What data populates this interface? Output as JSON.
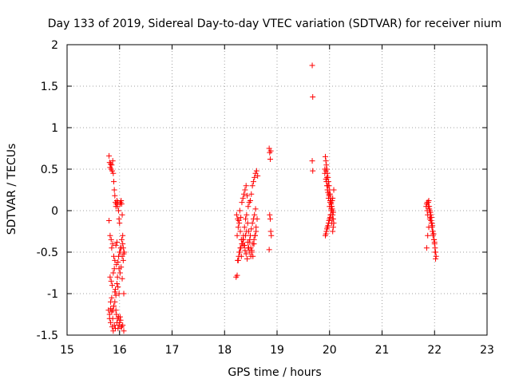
{
  "chart_data": {
    "type": "scatter",
    "title": "Day 133 of 2019, Sidereal Day-to-day VTEC variation (SDTVAR) for receiver nium",
    "xlabel": "GPS time / hours",
    "ylabel": "SDTVAR / TECUs",
    "xlim": [
      15,
      23
    ],
    "ylim": [
      -1.5,
      2
    ],
    "xticks": [
      "15",
      "16",
      "17",
      "18",
      "19",
      "20",
      "21",
      "22",
      "23"
    ],
    "yticks": [
      "-1.5",
      "-1",
      "-0.5",
      "0",
      "0.5",
      "1",
      "1.5",
      "2"
    ],
    "grid": true,
    "marker": "+",
    "colors": {
      "series": "#ff0000",
      "grid": "#a0a0a0",
      "axis": "#000000"
    },
    "series": [
      {
        "name": "receiver nium",
        "x": [
          15.8,
          15.81,
          15.82,
          15.83,
          15.84,
          15.85,
          15.86,
          15.87,
          15.88,
          15.89,
          15.9,
          15.91,
          15.92,
          15.93,
          15.94,
          15.95,
          15.96,
          15.97,
          15.98,
          15.99,
          16.0,
          16.01,
          16.02,
          16.03,
          16.04,
          16.05,
          16.06,
          16.07,
          16.08,
          16.09,
          15.8,
          15.82,
          15.84,
          15.85,
          15.87,
          15.89,
          15.91,
          15.93,
          15.95,
          15.97,
          15.99,
          16.01,
          16.03,
          16.05,
          16.07,
          15.82,
          15.84,
          15.86,
          15.88,
          15.9,
          15.92,
          15.94,
          15.96,
          15.98,
          16.0,
          16.02,
          16.04,
          16.06,
          16.08,
          15.83,
          15.85,
          15.87,
          15.89,
          15.91,
          15.93,
          15.95,
          15.97,
          15.99,
          16.01,
          16.03,
          16.05,
          15.81,
          15.83,
          15.86,
          15.88,
          15.9,
          15.92,
          15.94,
          15.96,
          15.98,
          16.0,
          16.02,
          16.04,
          16.06,
          16.08,
          15.79,
          15.81,
          15.83,
          15.85,
          15.87,
          15.89,
          15.91,
          15.93,
          15.95,
          15.97,
          15.99,
          16.01,
          16.03,
          18.23,
          18.25,
          18.27,
          18.29,
          18.31,
          18.33,
          18.35,
          18.37,
          18.39,
          18.41,
          18.43,
          18.45,
          18.47,
          18.49,
          18.51,
          18.53,
          18.55,
          18.57,
          18.59,
          18.61,
          18.63,
          18.22,
          18.24,
          18.26,
          18.28,
          18.3,
          18.32,
          18.34,
          18.36,
          18.38,
          18.4,
          18.42,
          18.44,
          18.46,
          18.48,
          18.5,
          18.52,
          18.54,
          18.56,
          18.58,
          18.6,
          18.24,
          18.26,
          18.28,
          18.3,
          18.32,
          18.34,
          18.36,
          18.38,
          18.4,
          18.42,
          18.44,
          18.46,
          18.48,
          18.5,
          18.52,
          18.54,
          18.56,
          18.58,
          18.6,
          18.62,
          18.25,
          18.27,
          18.29,
          18.31,
          18.33,
          18.35,
          18.37,
          18.39,
          18.41,
          18.43,
          18.45,
          18.47,
          18.49,
          18.51,
          18.53,
          18.55,
          18.57,
          18.59,
          18.85,
          18.86,
          18.87,
          18.88,
          18.86,
          18.87,
          18.88,
          18.89,
          18.85,
          19.67,
          19.68,
          19.67,
          19.68,
          19.92,
          19.93,
          19.94,
          19.95,
          19.96,
          19.97,
          19.98,
          19.99,
          20.0,
          20.01,
          20.02,
          20.03,
          20.04,
          20.05,
          20.06,
          20.07,
          20.08,
          19.91,
          19.93,
          19.95,
          19.97,
          19.99,
          20.01,
          20.03,
          20.05,
          20.07,
          19.94,
          19.96,
          19.98,
          20.0,
          20.02,
          20.04,
          20.06,
          19.92,
          19.94,
          19.96,
          19.98,
          20.0,
          20.02,
          20.04,
          20.06,
          20.08,
          19.93,
          19.95,
          19.97,
          19.99,
          20.01,
          20.03,
          20.05,
          19.91,
          19.93,
          19.95,
          19.97,
          19.99,
          20.01,
          20.03,
          20.05,
          20.07,
          21.84,
          21.85,
          21.86,
          21.87,
          21.88,
          21.89,
          21.9,
          21.91,
          21.92,
          21.93,
          21.94,
          21.95,
          21.96,
          21.97,
          21.98,
          21.99,
          22.0,
          22.01,
          22.02,
          22.03,
          21.85,
          21.87,
          21.89,
          21.91,
          21.93,
          21.95,
          21.97,
          21.99,
          22.01,
          21.86,
          21.88,
          21.9,
          21.92,
          21.94,
          21.96,
          21.98,
          22.0,
          22.02
        ],
        "y": [
          0.66,
          0.58,
          0.52,
          0.56,
          0.5,
          0.55,
          0.48,
          0.6,
          0.45,
          0.35,
          0.25,
          0.18,
          0.1,
          0.05,
          0.08,
          0.12,
          0.05,
          0.1,
          0.0,
          -0.1,
          -0.15,
          0.08,
          0.1,
          0.12,
          0.08,
          -0.05,
          -0.3,
          -0.45,
          -0.52,
          -0.5,
          -0.12,
          -0.3,
          -0.35,
          -0.45,
          -0.4,
          -0.55,
          -0.6,
          -0.42,
          -0.38,
          -0.62,
          -0.7,
          -0.5,
          -0.45,
          -0.55,
          -0.6,
          -0.8,
          -0.85,
          -0.9,
          -0.75,
          -0.7,
          -0.95,
          -0.65,
          -0.8,
          -0.55,
          -0.5,
          -0.45,
          -0.35,
          -0.4,
          -1.0,
          -1.1,
          -1.05,
          -1.2,
          -1.15,
          -0.98,
          -1.02,
          -0.88,
          -0.92,
          -1.0,
          -0.75,
          -0.68,
          -0.82,
          -1.3,
          -1.35,
          -1.4,
          -1.45,
          -1.38,
          -1.42,
          -1.25,
          -1.3,
          -1.28,
          -1.35,
          -1.32,
          -1.4,
          -1.38,
          -1.45,
          -1.2,
          -1.25,
          -1.18,
          -1.22,
          -1.3,
          -1.15,
          -1.1,
          -1.2,
          -1.35,
          -1.42,
          -1.38,
          -1.28,
          -1.4,
          -0.05,
          -0.1,
          -0.12,
          0.0,
          -0.08,
          0.1,
          0.15,
          0.2,
          0.25,
          0.3,
          0.18,
          0.05,
          0.1,
          0.12,
          0.2,
          0.3,
          0.35,
          0.4,
          0.45,
          0.48,
          0.42,
          -0.8,
          -0.78,
          -0.6,
          -0.5,
          -0.45,
          -0.55,
          -0.4,
          -0.35,
          -0.42,
          -0.3,
          -0.25,
          -0.38,
          -0.45,
          -0.5,
          -0.55,
          -0.48,
          -0.4,
          -0.35,
          -0.3,
          -0.25,
          -0.3,
          -0.2,
          -0.15,
          -0.25,
          -0.35,
          -0.4,
          -0.3,
          -0.2,
          -0.1,
          -0.05,
          -0.15,
          -0.25,
          -0.35,
          -0.45,
          -0.5,
          -0.55,
          -0.4,
          -0.3,
          -0.2,
          -0.1,
          -0.6,
          -0.55,
          -0.5,
          -0.45,
          -0.4,
          -0.35,
          -0.42,
          -0.48,
          -0.52,
          -0.58,
          -0.45,
          -0.38,
          -0.3,
          -0.22,
          -0.15,
          -0.1,
          -0.05,
          0.02,
          0.75,
          0.7,
          0.62,
          0.72,
          -0.05,
          -0.1,
          -0.25,
          -0.3,
          -0.47,
          1.75,
          1.37,
          0.6,
          0.48,
          0.65,
          0.6,
          0.55,
          0.5,
          0.45,
          0.4,
          0.35,
          0.3,
          0.25,
          0.2,
          0.15,
          0.1,
          0.05,
          0.0,
          -0.05,
          -0.1,
          -0.15,
          0.5,
          0.48,
          0.4,
          0.3,
          0.2,
          0.1,
          0.0,
          -0.1,
          -0.2,
          0.35,
          0.25,
          0.15,
          0.05,
          -0.05,
          -0.15,
          -0.25,
          -0.3,
          -0.25,
          -0.2,
          -0.15,
          -0.1,
          -0.05,
          0.05,
          0.15,
          0.25,
          -0.28,
          -0.22,
          -0.18,
          -0.12,
          -0.08,
          0.02,
          0.12,
          0.45,
          0.38,
          0.3,
          0.22,
          0.18,
          0.12,
          0.08,
          0.02,
          -0.02,
          0.05,
          0.08,
          0.0,
          -0.05,
          0.1,
          0.12,
          0.05,
          0.0,
          -0.08,
          -0.12,
          -0.15,
          -0.2,
          -0.25,
          -0.3,
          -0.28,
          -0.35,
          -0.4,
          -0.45,
          -0.5,
          -0.55,
          -0.45,
          -0.3,
          -0.2,
          -0.1,
          -0.05,
          -0.15,
          -0.25,
          -0.35,
          -0.5,
          0.1,
          0.05,
          0.02,
          -0.02,
          -0.08,
          -0.18,
          -0.28,
          -0.38,
          -0.58
        ]
      }
    ]
  }
}
